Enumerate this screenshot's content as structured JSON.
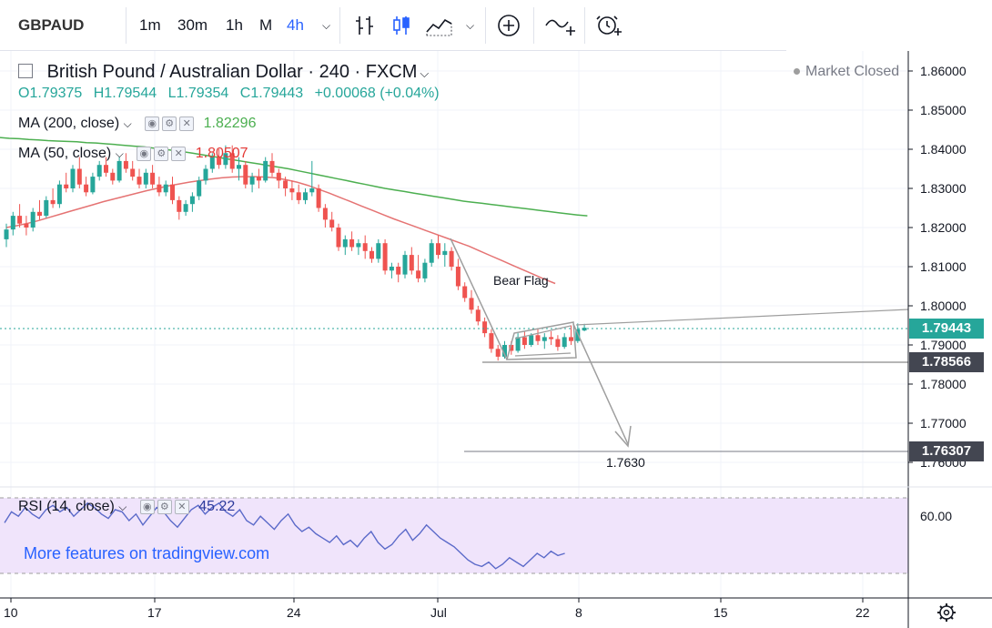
{
  "toolbar": {
    "symbol": "GBPAUD",
    "intervals": [
      "1m",
      "30m",
      "1h",
      "M",
      "4h"
    ],
    "active_interval": "4h",
    "icons": [
      "bar-chart-icon",
      "candles-icon",
      "area-chart-icon",
      "chevron-down-icon",
      "add-compare-icon",
      "indicators-icon",
      "alert-icon"
    ]
  },
  "header": {
    "title": "British Pound / Australian Dollar · 240 · FXCM",
    "market_status": "Market Closed",
    "ohlc": {
      "open": "O1.79375",
      "high": "H1.79544",
      "low": "L1.79354",
      "close": "C1.79443",
      "change": "+0.00068 (+0.04%)"
    }
  },
  "indicators": [
    {
      "name": "MA (200, close)",
      "value": "1.82296",
      "color": "#4caf50"
    },
    {
      "name": "MA (50, close)",
      "value": "1.80507",
      "color": "#e53935"
    }
  ],
  "rsi": {
    "name": "RSI (14, close)",
    "value": "45.22",
    "level_label": "60.00",
    "color": "#5b6ac9"
  },
  "watermark": "More features on tradingview.com",
  "annotations": {
    "pattern_label": "Bear Flag",
    "target_label": "1.7630"
  },
  "price_tags": {
    "last": "1.79443",
    "support": "1.78566",
    "target": "1.76307"
  },
  "colors": {
    "up": "#26a69a",
    "down": "#ef5350",
    "ma200": "#4caf50",
    "ma50": "#e57373",
    "rsi_band": "#f0e4fb",
    "last_price": "#26a69a",
    "level_tag": "#434651"
  },
  "chart_data": {
    "type": "candlestick",
    "ylim": [
      1.757,
      1.866
    ],
    "y_ticks": [
      "1.86000",
      "1.85000",
      "1.84000",
      "1.83000",
      "1.82000",
      "1.81000",
      "1.80000",
      "1.79000",
      "1.78000",
      "1.77000",
      "1.76000"
    ],
    "x_ticks": [
      "10",
      "17",
      "24",
      "Jul",
      "8",
      "15",
      "22"
    ],
    "candles": [
      [
        1.817,
        1.821,
        1.815,
        1.8195
      ],
      [
        1.8195,
        1.824,
        1.818,
        1.823
      ],
      [
        1.823,
        1.826,
        1.82,
        1.821
      ],
      [
        1.821,
        1.823,
        1.818,
        1.82
      ],
      [
        1.82,
        1.825,
        1.819,
        1.824
      ],
      [
        1.824,
        1.827,
        1.822,
        1.823
      ],
      [
        1.823,
        1.828,
        1.8225,
        1.827
      ],
      [
        1.827,
        1.83,
        1.825,
        1.826
      ],
      [
        1.826,
        1.832,
        1.825,
        1.831
      ],
      [
        1.831,
        1.834,
        1.829,
        1.83
      ],
      [
        1.83,
        1.836,
        1.829,
        1.835
      ],
      [
        1.835,
        1.838,
        1.83,
        1.831
      ],
      [
        1.831,
        1.833,
        1.828,
        1.829
      ],
      [
        1.829,
        1.834,
        1.8285,
        1.833
      ],
      [
        1.833,
        1.837,
        1.832,
        1.836
      ],
      [
        1.836,
        1.838,
        1.833,
        1.834
      ],
      [
        1.834,
        1.835,
        1.831,
        1.832
      ],
      [
        1.832,
        1.838,
        1.8315,
        1.837
      ],
      [
        1.837,
        1.839,
        1.834,
        1.835
      ],
      [
        1.835,
        1.837,
        1.832,
        1.833
      ],
      [
        1.833,
        1.835,
        1.83,
        1.831
      ],
      [
        1.831,
        1.835,
        1.83,
        1.834
      ],
      [
        1.834,
        1.836,
        1.83,
        1.831
      ],
      [
        1.831,
        1.833,
        1.828,
        1.829
      ],
      [
        1.829,
        1.832,
        1.828,
        1.831
      ],
      [
        1.831,
        1.833,
        1.826,
        1.827
      ],
      [
        1.827,
        1.828,
        1.822,
        1.824
      ],
      [
        1.824,
        1.827,
        1.823,
        1.826
      ],
      [
        1.826,
        1.829,
        1.824,
        1.828
      ],
      [
        1.828,
        1.833,
        1.827,
        1.832
      ],
      [
        1.832,
        1.836,
        1.831,
        1.835
      ],
      [
        1.835,
        1.839,
        1.834,
        1.838
      ],
      [
        1.838,
        1.84,
        1.835,
        1.836
      ],
      [
        1.836,
        1.841,
        1.835,
        1.839
      ],
      [
        1.839,
        1.841,
        1.834,
        1.835
      ],
      [
        1.835,
        1.838,
        1.832,
        1.836
      ],
      [
        1.836,
        1.837,
        1.83,
        1.831
      ],
      [
        1.831,
        1.834,
        1.829,
        1.833
      ],
      [
        1.833,
        1.835,
        1.83,
        1.832
      ],
      [
        1.832,
        1.838,
        1.8315,
        1.837
      ],
      [
        1.837,
        1.839,
        1.833,
        1.834
      ],
      [
        1.834,
        1.835,
        1.83,
        1.832
      ],
      [
        1.832,
        1.833,
        1.828,
        1.83
      ],
      [
        1.83,
        1.832,
        1.827,
        1.829
      ],
      [
        1.829,
        1.831,
        1.826,
        1.827
      ],
      [
        1.827,
        1.83,
        1.826,
        1.829
      ],
      [
        1.829,
        1.837,
        1.828,
        1.83
      ],
      [
        1.83,
        1.831,
        1.824,
        1.825
      ],
      [
        1.825,
        1.826,
        1.82,
        1.822
      ],
      [
        1.822,
        1.824,
        1.819,
        1.82
      ],
      [
        1.82,
        1.821,
        1.814,
        1.815
      ],
      [
        1.815,
        1.818,
        1.813,
        1.817
      ],
      [
        1.817,
        1.819,
        1.814,
        1.815
      ],
      [
        1.815,
        1.817,
        1.813,
        1.816
      ],
      [
        1.816,
        1.818,
        1.812,
        1.814
      ],
      [
        1.814,
        1.815,
        1.811,
        1.812
      ],
      [
        1.812,
        1.817,
        1.811,
        1.816
      ],
      [
        1.816,
        1.817,
        1.808,
        1.809
      ],
      [
        1.809,
        1.811,
        1.807,
        1.81
      ],
      [
        1.81,
        1.811,
        1.806,
        1.808
      ],
      [
        1.808,
        1.814,
        1.807,
        1.813
      ],
      [
        1.813,
        1.815,
        1.808,
        1.809
      ],
      [
        1.809,
        1.813,
        1.806,
        1.807
      ],
      [
        1.807,
        1.812,
        1.806,
        1.811
      ],
      [
        1.811,
        1.817,
        1.81,
        1.816
      ],
      [
        1.816,
        1.818,
        1.812,
        1.813
      ],
      [
        1.813,
        1.816,
        1.81,
        1.814
      ],
      [
        1.814,
        1.815,
        1.809,
        1.81
      ],
      [
        1.81,
        1.812,
        1.804,
        1.805
      ],
      [
        1.805,
        1.806,
        1.801,
        1.802
      ],
      [
        1.802,
        1.804,
        1.798,
        1.799
      ],
      [
        1.799,
        1.8,
        1.795,
        1.796
      ],
      [
        1.796,
        1.797,
        1.792,
        1.793
      ],
      [
        1.793,
        1.794,
        1.788,
        1.789
      ],
      [
        1.789,
        1.79,
        1.786,
        1.787
      ],
      [
        1.787,
        1.791,
        1.7865,
        1.79
      ],
      [
        1.79,
        1.791,
        1.7875,
        1.7885
      ],
      [
        1.7885,
        1.793,
        1.788,
        1.792
      ],
      [
        1.792,
        1.7935,
        1.789,
        1.79
      ],
      [
        1.79,
        1.793,
        1.7895,
        1.7925
      ],
      [
        1.7925,
        1.794,
        1.79,
        1.791
      ],
      [
        1.791,
        1.793,
        1.789,
        1.792
      ],
      [
        1.792,
        1.7935,
        1.79,
        1.7915
      ],
      [
        1.7915,
        1.7925,
        1.7885,
        1.7895
      ],
      [
        1.7895,
        1.793,
        1.789,
        1.792
      ],
      [
        1.792,
        1.795,
        1.79,
        1.791
      ],
      [
        1.791,
        1.7955,
        1.7905,
        1.794
      ],
      [
        1.7937,
        1.7954,
        1.7935,
        1.7944
      ]
    ],
    "ma200": [
      1.843,
      1.8428,
      1.8427,
      1.8425,
      1.8424,
      1.8422,
      1.8421,
      1.842,
      1.8419,
      1.8417,
      1.8416,
      1.8414,
      1.8412,
      1.841,
      1.8408,
      1.8406,
      1.8403,
      1.84,
      1.8397,
      1.8394,
      1.839,
      1.8386,
      1.8382,
      1.8378,
      1.8374,
      1.837,
      1.8366,
      1.8362,
      1.8358,
      1.8354,
      1.835,
      1.8345,
      1.834,
      1.8335,
      1.833,
      1.8325,
      1.832,
      1.8315,
      1.831,
      1.8305,
      1.83,
      1.8296,
      1.8292,
      1.8288,
      1.8284,
      1.828,
      1.8276,
      1.8272,
      1.8268,
      1.8265,
      1.8262,
      1.8259,
      1.8256,
      1.8253,
      1.825,
      1.8247,
      1.8244,
      1.8241,
      1.8238,
      1.8235,
      1.8232,
      1.823
    ],
    "ma50": [
      1.82,
      1.8205,
      1.8211,
      1.8218,
      1.8226,
      1.8234,
      1.8242,
      1.825,
      1.8258,
      1.8266,
      1.8273,
      1.828,
      1.8287,
      1.8294,
      1.83,
      1.8306,
      1.8311,
      1.8316,
      1.832,
      1.8324,
      1.8327,
      1.8329,
      1.833,
      1.833,
      1.8329,
      1.8327,
      1.8322,
      1.8316,
      1.8308,
      1.8298,
      1.8288,
      1.8277,
      1.8266,
      1.8255,
      1.8244,
      1.8233,
      1.8222,
      1.8212,
      1.8202,
      1.8192,
      1.8182,
      1.8172,
      1.8162,
      1.8152,
      1.814,
      1.8128,
      1.8116,
      1.8104,
      1.8092,
      1.808,
      1.8068,
      1.8057
    ],
    "rsi_values": [
      59,
      64,
      62,
      66,
      63,
      61,
      65,
      67,
      64,
      66,
      62,
      65,
      68,
      66,
      63,
      61,
      65,
      64,
      60,
      63,
      58,
      62,
      66,
      64,
      60,
      57,
      61,
      65,
      67,
      63,
      66,
      68,
      64,
      62,
      65,
      60,
      58,
      62,
      59,
      56,
      60,
      63,
      58,
      55,
      57,
      54,
      52,
      50,
      53,
      49,
      51,
      48,
      52,
      55,
      50,
      47,
      49,
      53,
      56,
      51,
      54,
      58,
      55,
      52,
      50,
      48,
      45,
      42,
      40,
      39,
      41,
      38,
      40,
      43,
      41,
      39,
      42,
      45,
      43,
      46,
      44,
      45
    ]
  }
}
